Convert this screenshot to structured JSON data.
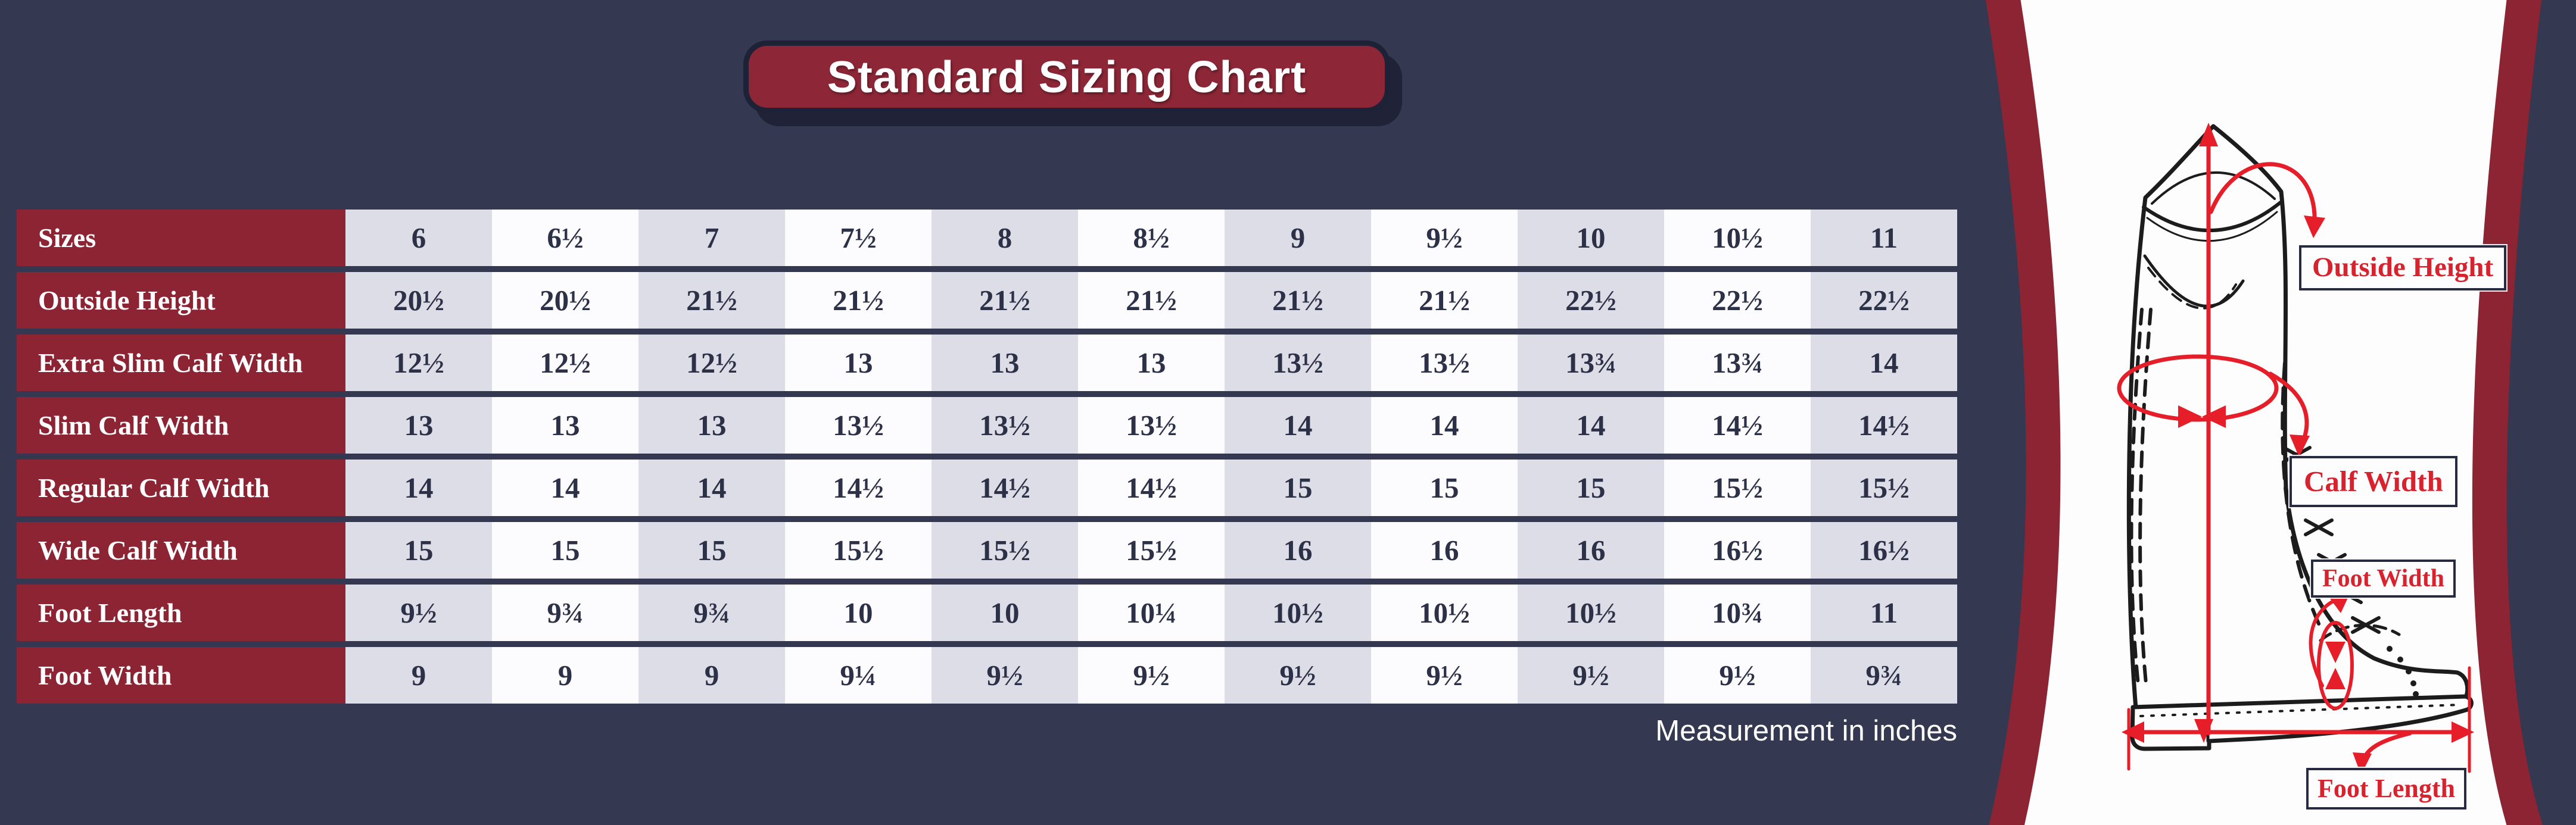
{
  "title": "Standard Sizing Chart",
  "note": "Measurement in inches",
  "chart_data": {
    "type": "table",
    "title": "Standard Sizing Chart",
    "unit_note": "Measurement in inches",
    "rows": [
      {
        "label": "Sizes",
        "values": [
          "6",
          "6½",
          "7",
          "7½",
          "8",
          "8½",
          "9",
          "9½",
          "10",
          "10½",
          "11"
        ]
      },
      {
        "label": "Outside Height",
        "values": [
          "20½",
          "20½",
          "21½",
          "21½",
          "21½",
          "21½",
          "21½",
          "21½",
          "22½",
          "22½",
          "22½"
        ]
      },
      {
        "label": "Extra Slim Calf Width",
        "values": [
          "12½",
          "12½",
          "12½",
          "13",
          "13",
          "13",
          "13½",
          "13½",
          "13¾",
          "13¾",
          "14"
        ]
      },
      {
        "label": "Slim Calf Width",
        "values": [
          "13",
          "13",
          "13",
          "13½",
          "13½",
          "13½",
          "14",
          "14",
          "14",
          "14½",
          "14½"
        ]
      },
      {
        "label": "Regular Calf Width",
        "values": [
          "14",
          "14",
          "14",
          "14½",
          "14½",
          "14½",
          "15",
          "15",
          "15",
          "15½",
          "15½"
        ]
      },
      {
        "label": "Wide Calf Width",
        "values": [
          "15",
          "15",
          "15",
          "15½",
          "15½",
          "15½",
          "16",
          "16",
          "16",
          "16½",
          "16½"
        ]
      },
      {
        "label": "Foot Length",
        "values": [
          "9½",
          "9¾",
          "9¾",
          "10",
          "10",
          "10¼",
          "10½",
          "10½",
          "10½",
          "10¾",
          "11"
        ]
      },
      {
        "label": "Foot Width",
        "values": [
          "9",
          "9",
          "9",
          "9¼",
          "9½",
          "9½",
          "9½",
          "9½",
          "9½",
          "9½",
          "9¾"
        ]
      }
    ]
  },
  "diagram": {
    "labels": {
      "outside_height": "Outside Height",
      "calf_width": "Calf Width",
      "foot_width": "Foot Width",
      "foot_length": "Foot Length"
    }
  },
  "colors": {
    "background": "#343850",
    "maroon": "#8c2434",
    "banner_maroon": "#8d2737",
    "cell_gray": "#dcdde6",
    "cell_white": "#fcfcfe",
    "value_text": "#2d3148",
    "annotation_red": "#e61e29",
    "label_red": "#d8232e",
    "panel_white": "#fdfdfe"
  }
}
